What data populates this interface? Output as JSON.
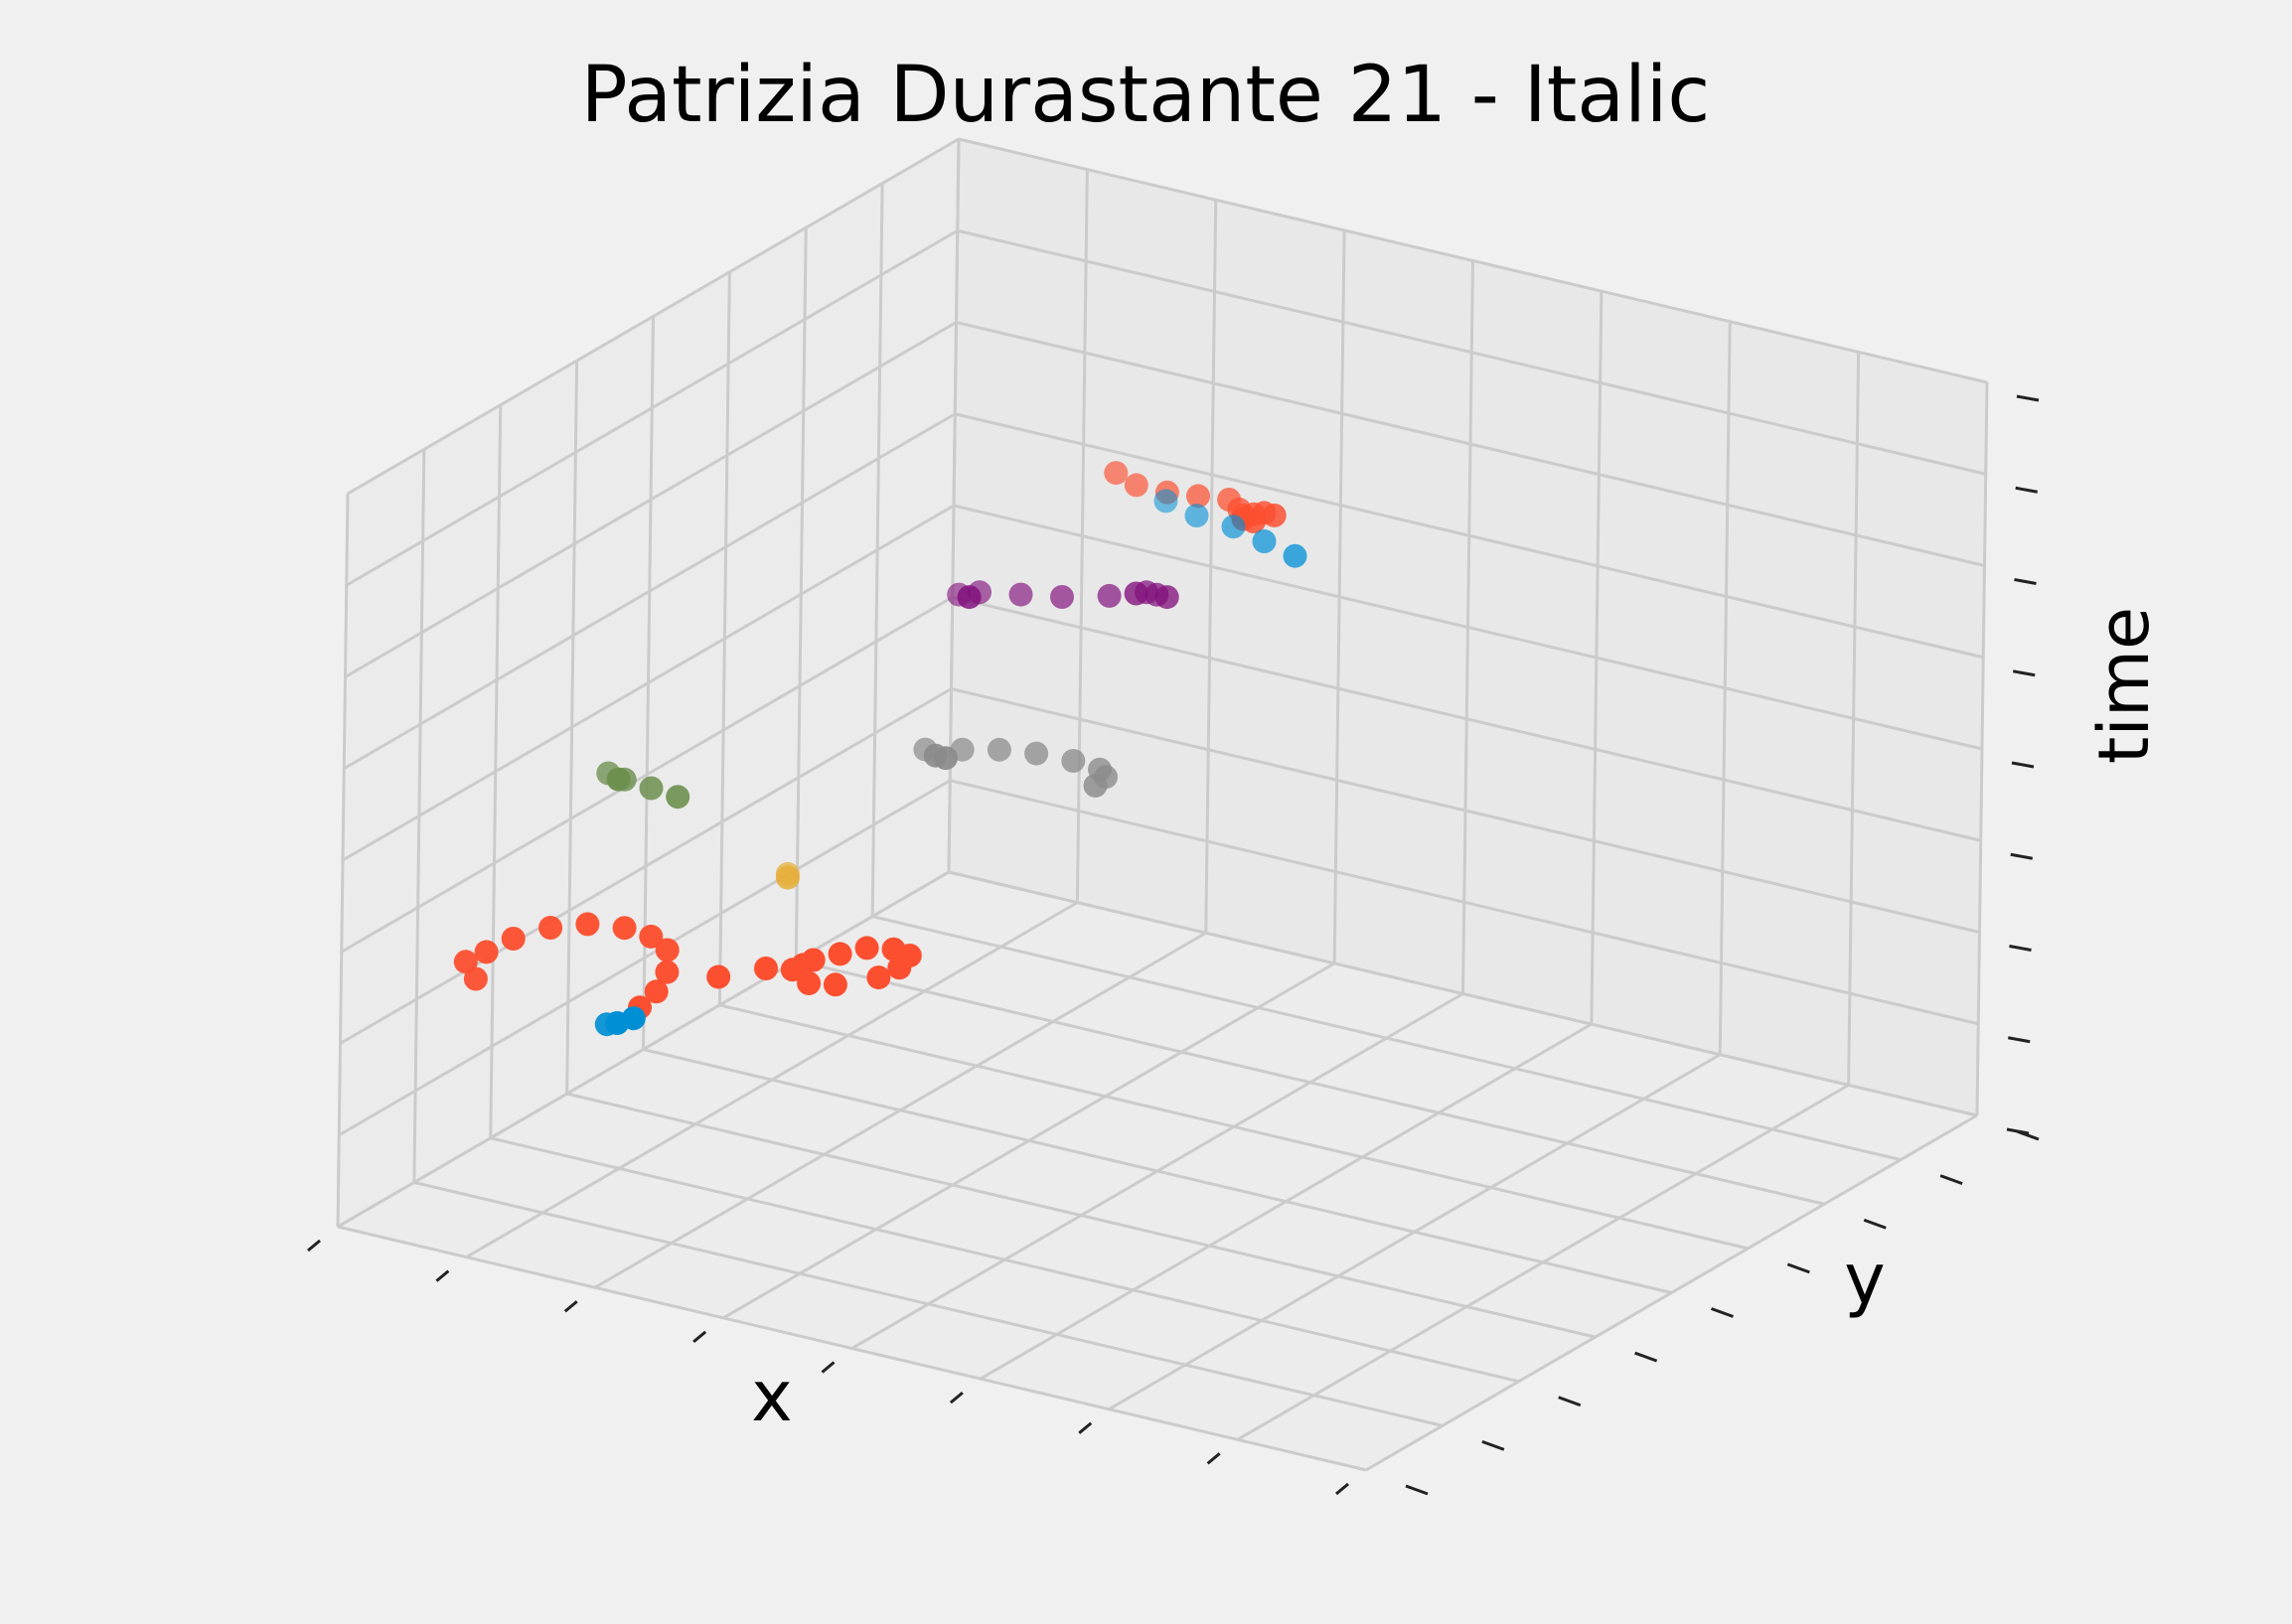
{
  "chart_data": {
    "type": "scatter",
    "projection": "3d",
    "title": "Patrizia Durastante 21 - Italic",
    "xlabel": "x",
    "ylabel": "y",
    "zlabel": "time",
    "grid": true,
    "tick_labels_visible": false,
    "series": [
      {
        "color": "#fc4f30",
        "points": [
          [
            0.48,
            0.45,
            0.97
          ],
          [
            0.5,
            0.45,
            0.96
          ],
          [
            0.53,
            0.45,
            0.96
          ],
          [
            0.56,
            0.45,
            0.965
          ],
          [
            0.59,
            0.45,
            0.97
          ],
          [
            0.6,
            0.45,
            0.96
          ],
          [
            0.61,
            0.44,
            0.96
          ],
          [
            0.62,
            0.44,
            0.965
          ],
          [
            0.63,
            0.44,
            0.97
          ],
          [
            0.64,
            0.44,
            0.97
          ],
          [
            0.62,
            0.44,
            0.955
          ],
          [
            0.61,
            0.44,
            0.955
          ]
        ]
      },
      {
        "color": "#008fd5",
        "points": [
          [
            0.47,
            0.55,
            0.88
          ],
          [
            0.5,
            0.55,
            0.87
          ],
          [
            0.53,
            0.56,
            0.86
          ],
          [
            0.56,
            0.56,
            0.85
          ],
          [
            0.59,
            0.56,
            0.84
          ]
        ]
      },
      {
        "color": "#810f7c",
        "points": [
          [
            0.3,
            0.5,
            0.72
          ],
          [
            0.32,
            0.5,
            0.73
          ],
          [
            0.36,
            0.5,
            0.74
          ],
          [
            0.4,
            0.5,
            0.75
          ],
          [
            0.44,
            0.51,
            0.76
          ],
          [
            0.47,
            0.52,
            0.77
          ],
          [
            0.48,
            0.52,
            0.77
          ],
          [
            0.49,
            0.52,
            0.77
          ],
          [
            0.46,
            0.52,
            0.765
          ],
          [
            0.31,
            0.5,
            0.72
          ]
        ]
      },
      {
        "color": "#8b8b8b",
        "points": [
          [
            0.34,
            0.38,
            0.58
          ],
          [
            0.37,
            0.39,
            0.585
          ],
          [
            0.4,
            0.4,
            0.59
          ],
          [
            0.43,
            0.41,
            0.59
          ],
          [
            0.46,
            0.42,
            0.585
          ],
          [
            0.48,
            0.43,
            0.575
          ],
          [
            0.48,
            0.44,
            0.56
          ],
          [
            0.47,
            0.44,
            0.545
          ],
          [
            0.35,
            0.38,
            0.575
          ],
          [
            0.36,
            0.38,
            0.575
          ]
        ]
      },
      {
        "color": "#6d904f",
        "points": [
          [
            0.08,
            0.3,
            0.5
          ],
          [
            0.09,
            0.31,
            0.49
          ],
          [
            0.11,
            0.32,
            0.48
          ],
          [
            0.13,
            0.33,
            0.47
          ],
          [
            0.09,
            0.3,
            0.495
          ]
        ]
      },
      {
        "color": "#e5ae38",
        "points": [
          [
            0.22,
            0.36,
            0.38
          ],
          [
            0.22,
            0.36,
            0.375
          ]
        ]
      },
      {
        "color": "#fc4f30",
        "points": [
          [
            0.05,
            0.12,
            0.32
          ],
          [
            0.06,
            0.12,
            0.3
          ],
          [
            0.07,
            0.12,
            0.34
          ],
          [
            0.09,
            0.13,
            0.36
          ],
          [
            0.12,
            0.14,
            0.38
          ],
          [
            0.15,
            0.15,
            0.39
          ],
          [
            0.18,
            0.16,
            0.39
          ],
          [
            0.2,
            0.17,
            0.38
          ],
          [
            0.21,
            0.18,
            0.36
          ],
          [
            0.21,
            0.18,
            0.33
          ],
          [
            0.2,
            0.18,
            0.3
          ],
          [
            0.19,
            0.17,
            0.28
          ],
          [
            0.26,
            0.18,
            0.34
          ],
          [
            0.3,
            0.19,
            0.36
          ],
          [
            0.32,
            0.2,
            0.36
          ],
          [
            0.33,
            0.2,
            0.37
          ],
          [
            0.34,
            0.2,
            0.38
          ],
          [
            0.36,
            0.21,
            0.39
          ],
          [
            0.38,
            0.22,
            0.4
          ],
          [
            0.4,
            0.23,
            0.4
          ],
          [
            0.41,
            0.24,
            0.39
          ],
          [
            0.4,
            0.24,
            0.37
          ],
          [
            0.38,
            0.24,
            0.35
          ],
          [
            0.35,
            0.22,
            0.34
          ],
          [
            0.33,
            0.21,
            0.34
          ]
        ]
      },
      {
        "color": "#008fd5",
        "points": [
          [
            0.17,
            0.15,
            0.26
          ],
          [
            0.18,
            0.15,
            0.265
          ],
          [
            0.19,
            0.16,
            0.27
          ]
        ]
      }
    ]
  }
}
